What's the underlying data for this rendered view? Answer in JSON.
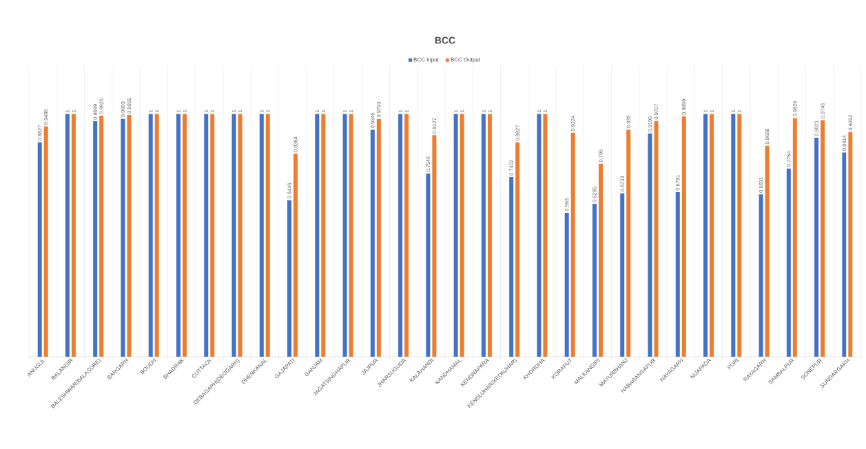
{
  "chart_data": {
    "type": "bar",
    "title": "BCC",
    "categories": [
      "ANUGUL",
      "BALANGIR",
      "BALESHWAR(BALASORE)",
      "BARGARH",
      "BOUDH",
      "BHADRAK",
      "CUTTACK",
      "DEBAGARH(DEOGARH)",
      "DHENKANAL",
      "GAJAPATI",
      "GANJAM",
      "JAGATSINGHAPUR",
      "JAJPUR",
      "JHARSUGUDA",
      "KALAHANDI",
      "KANDHAMAL",
      "KENDRAPARA",
      "KENDUJHAR(KEONJHAR)",
      "KHORDHA",
      "KORAPUT",
      "MALKANGIRI",
      "MAYURBHANJ",
      "NABARANGAPUR",
      "NAYAGARH",
      "NUAPADA",
      "PURI",
      "RAYAGARH",
      "SAMBALPUR",
      "SONEPUR",
      "SUNDARGARH"
    ],
    "series": [
      {
        "name": "BCC Input",
        "color": "#4472c4",
        "values": [
          0.8827,
          1,
          0.9699,
          0.9803,
          1,
          1,
          1,
          1,
          1,
          0.6446,
          1,
          1,
          0.9345,
          1,
          0.7546,
          1,
          1,
          0.7402,
          1,
          0.593,
          0.6295,
          0.6733,
          0.9195,
          0.6781,
          1,
          1,
          0.6691,
          0.7754,
          0.9021,
          0.8414
        ]
      },
      {
        "name": "BCC Output",
        "color": "#ed7d31",
        "values": [
          0.9486,
          1,
          0.9926,
          0.9955,
          1,
          1,
          1,
          1,
          1,
          0.8364,
          1,
          1,
          0.9793,
          1,
          0.9127,
          1,
          1,
          0.8827,
          1,
          0.9224,
          0.795,
          0.935,
          0.9707,
          0.9899,
          1,
          1,
          0.8688,
          0.9826,
          0.9745,
          0.9252
        ]
      }
    ],
    "data_labels": true,
    "grid": "x",
    "legend": "top"
  }
}
